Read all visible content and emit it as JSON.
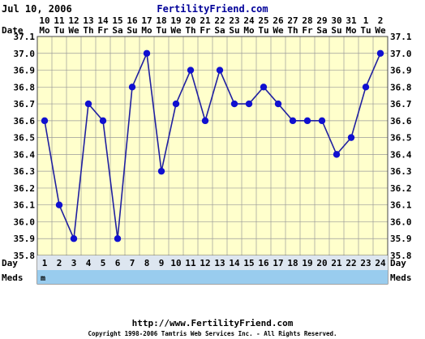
{
  "header": {
    "date": "Jul 10, 2006",
    "brand": "FertilityFriend.com"
  },
  "footer": {
    "url": "http://www.FertilityFriend.com",
    "copyright": "Copyright 1998-2006 Tamtris Web Services Inc. - All Rights Reserved."
  },
  "colors": {
    "plot_background": "#ffffcc",
    "line": "#2020a0",
    "point": "#1010d0",
    "meds_row": "#99ccee",
    "day_row": "#dde6f0",
    "brand": "#000099"
  },
  "chart_data": {
    "type": "line",
    "row_labels": {
      "date": "Date",
      "day": "Day",
      "meds": "Meds"
    },
    "dates": [
      "10",
      "11",
      "12",
      "13",
      "14",
      "15",
      "16",
      "17",
      "18",
      "19",
      "20",
      "21",
      "22",
      "23",
      "24",
      "25",
      "26",
      "27",
      "28",
      "29",
      "30",
      "31",
      "1",
      "2"
    ],
    "weekdays": [
      "Mo",
      "Tu",
      "We",
      "Th",
      "Fr",
      "Sa",
      "Su",
      "Mo",
      "Tu",
      "We",
      "Th",
      "Fr",
      "Sa",
      "Su",
      "Mo",
      "Tu",
      "We",
      "Th",
      "Fr",
      "Sa",
      "Su",
      "Mo",
      "Tu",
      "We"
    ],
    "days": [
      "1",
      "2",
      "3",
      "4",
      "5",
      "6",
      "7",
      "8",
      "9",
      "10",
      "11",
      "12",
      "13",
      "14",
      "15",
      "16",
      "17",
      "18",
      "19",
      "20",
      "21",
      "22",
      "23",
      "24"
    ],
    "temperatures": [
      36.6,
      36.1,
      35.9,
      36.7,
      36.6,
      35.9,
      36.8,
      37.0,
      36.3,
      36.7,
      36.9,
      36.6,
      36.9,
      36.7,
      36.7,
      36.8,
      36.7,
      36.6,
      36.6,
      36.6,
      36.4,
      36.5,
      36.8,
      37.0
    ],
    "meds": [
      "m",
      "",
      "",
      "",
      "",
      "",
      "",
      "",
      "",
      "",
      "",
      "",
      "",
      "",
      "",
      "",
      "",
      "",
      "",
      "",
      "",
      "",
      "",
      ""
    ],
    "y_ticks": [
      "37.1",
      "37.0",
      "36.9",
      "36.8",
      "36.7",
      "36.6",
      "36.5",
      "36.4",
      "36.3",
      "36.2",
      "36.1",
      "36.0",
      "35.9",
      "35.8"
    ],
    "ylim": [
      35.8,
      37.1
    ],
    "grid": true,
    "legend": "none"
  }
}
